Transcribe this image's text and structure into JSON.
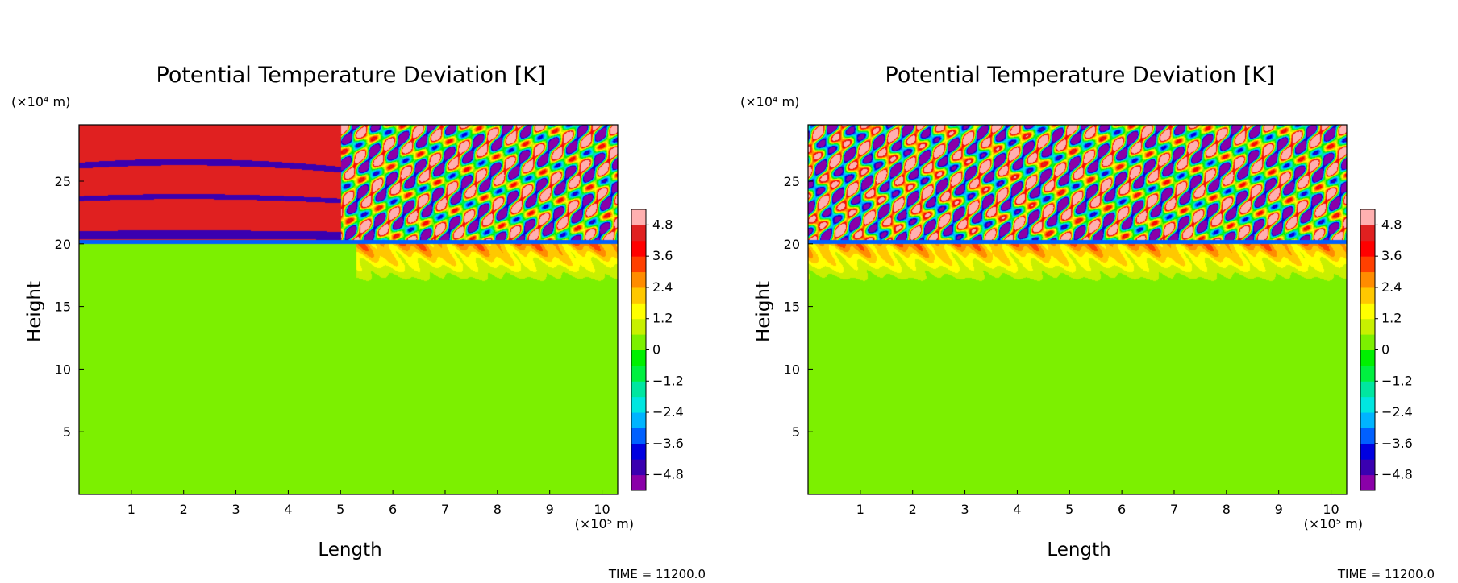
{
  "chart_data": [
    {
      "type": "heatmap",
      "title": "Potential Temperature Deviation [K]",
      "xlabel": "Length",
      "ylabel": "Height",
      "x_unit_label": "(×10⁵ m)",
      "y_unit_label": "(×10⁴ m)",
      "xlim": [
        0,
        10.3
      ],
      "ylim": [
        0,
        29.5
      ],
      "x_ticks": [
        1,
        2,
        3,
        4,
        5,
        6,
        7,
        8,
        9,
        10
      ],
      "y_ticks": [
        5,
        10,
        15,
        20,
        25
      ],
      "colorbar": {
        "min": -5.4,
        "max": 5.4,
        "labels": [
          "4.8",
          "3.6",
          "2.4",
          "1.2",
          "0",
          "−1.2",
          "−2.4",
          "−3.6",
          "−4.8"
        ],
        "label_values": [
          4.8,
          3.6,
          2.4,
          1.2,
          0,
          -1.2,
          -2.4,
          -3.6,
          -4.8
        ],
        "colors": [
          "#8a00a8",
          "#3a00b0",
          "#0000e0",
          "#0060ff",
          "#00b4ff",
          "#00e6e0",
          "#00e6a0",
          "#00f040",
          "#00f000",
          "#7cf000",
          "#c8f000",
          "#ffff00",
          "#ffc800",
          "#ff8c00",
          "#ff4000",
          "#ff0000",
          "#e02020",
          "#ffb0b0"
        ]
      },
      "time_label": "TIME = 11200.0",
      "field": {
        "tropopause_height": 20,
        "lower_value": 0,
        "band_boundaries": [
          20.4,
          21.1,
          23.6,
          24.0,
          26.3,
          26.8,
          29.5
        ],
        "band_values": [
          4.8,
          -4.8,
          4.8,
          -4.8,
          4.8,
          -4.8,
          4.8
        ],
        "wave_region_x": [
          5,
          10.3
        ],
        "warm_patch_x": [
          5.3,
          10.3
        ],
        "warm_patch_value": 2.4
      }
    },
    {
      "type": "heatmap",
      "title": "Potential Temperature Deviation [K]",
      "xlabel": "Length",
      "ylabel": "Height",
      "x_unit_label": "(×10⁵ m)",
      "y_unit_label": "(×10⁴ m)",
      "xlim": [
        0,
        10.3
      ],
      "ylim": [
        0,
        29.5
      ],
      "x_ticks": [
        1,
        2,
        3,
        4,
        5,
        6,
        7,
        8,
        9,
        10
      ],
      "y_ticks": [
        5,
        10,
        15,
        20,
        25
      ],
      "colorbar": {
        "min": -5.4,
        "max": 5.4,
        "labels": [
          "4.8",
          "3.6",
          "2.4",
          "1.2",
          "0",
          "−1.2",
          "−2.4",
          "−3.6",
          "−4.8"
        ],
        "label_values": [
          4.8,
          3.6,
          2.4,
          1.2,
          0,
          -1.2,
          -2.4,
          -3.6,
          -4.8
        ],
        "colors": [
          "#8a00a8",
          "#3a00b0",
          "#0000e0",
          "#0060ff",
          "#00b4ff",
          "#00e6e0",
          "#00e6a0",
          "#00f040",
          "#00f000",
          "#7cf000",
          "#c8f000",
          "#ffff00",
          "#ffc800",
          "#ff8c00",
          "#ff4000",
          "#ff0000",
          "#e02020",
          "#ffb0b0"
        ]
      },
      "time_label": "TIME = 11200.0",
      "field": {
        "tropopause_height": 20,
        "lower_value": 0,
        "band_boundaries": [
          20.4,
          21.1,
          23.6,
          24.0,
          26.3,
          26.8,
          29.5
        ],
        "band_values": [
          4.8,
          -4.8,
          4.8,
          -4.8,
          4.8,
          -4.8,
          4.8
        ],
        "wave_region_x": [
          0,
          10.3
        ],
        "warm_patch_x": [
          0,
          10.3
        ],
        "warm_patch_value": 2.4
      }
    }
  ]
}
